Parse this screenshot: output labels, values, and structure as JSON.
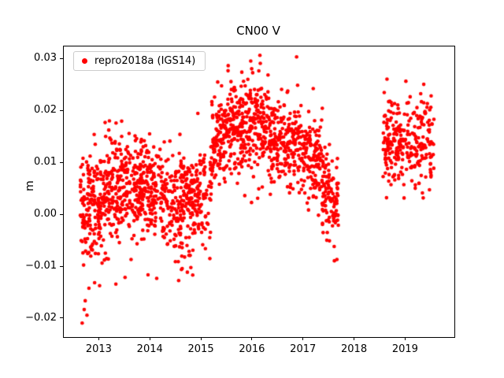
{
  "figure": {
    "title": "CN00 V",
    "ylabel": "m"
  },
  "legend": {
    "label": "repro2018a (IGS14)",
    "marker_color": "#ff0000"
  },
  "chart_data": {
    "type": "scatter",
    "title": "CN00 V",
    "xlabel": "",
    "ylabel": "m",
    "grid": false,
    "legend_position": "upper left",
    "marker": "circle",
    "marker_color": "#ff0000",
    "marker_radius_px": 2.3,
    "xlim": [
      2012.3,
      2019.95
    ],
    "ylim": [
      -0.0235,
      0.0325
    ],
    "xticks": {
      "values": [
        2013,
        2014,
        2015,
        2016,
        2017,
        2018,
        2019
      ],
      "labels": [
        "2013",
        "2014",
        "2015",
        "2016",
        "2017",
        "2018",
        "2019"
      ]
    },
    "yticks": {
      "values": [
        -0.02,
        -0.01,
        0.0,
        0.01,
        0.02,
        0.03
      ],
      "labels": [
        "−0.02",
        "−0.01",
        "0.00",
        "0.01",
        "0.02",
        "0.03"
      ]
    },
    "data_gaps": [
      [
        2017.68,
        2018.55
      ]
    ],
    "series": [
      {
        "name": "repro2018a (IGS14)",
        "color": "#ff0000",
        "seed": 1337,
        "clamp_y": [
          -0.0215,
          0.0308
        ],
        "segments": [
          {
            "x0": 2012.62,
            "x1": 2013.05,
            "n": 170,
            "y0": 0.0,
            "y1": 0.002,
            "std": 0.0063
          },
          {
            "x0": 2013.05,
            "x1": 2013.75,
            "n": 250,
            "y0": 0.004,
            "y1": 0.006,
            "std": 0.005
          },
          {
            "x0": 2013.75,
            "x1": 2014.45,
            "n": 240,
            "y0": 0.005,
            "y1": 0.004,
            "std": 0.0048
          },
          {
            "x0": 2014.45,
            "x1": 2015.18,
            "n": 250,
            "y0": 0.002,
            "y1": 0.004,
            "std": 0.005
          },
          {
            "x0": 2015.18,
            "x1": 2015.5,
            "n": 120,
            "y0": 0.013,
            "y1": 0.016,
            "std": 0.004
          },
          {
            "x0": 2015.5,
            "x1": 2016.3,
            "n": 290,
            "y0": 0.017,
            "y1": 0.017,
            "std": 0.0045
          },
          {
            "x0": 2016.3,
            "x1": 2016.8,
            "n": 170,
            "y0": 0.014,
            "y1": 0.013,
            "std": 0.0048
          },
          {
            "x0": 2016.8,
            "x1": 2017.35,
            "n": 180,
            "y0": 0.013,
            "y1": 0.011,
            "std": 0.0042
          },
          {
            "x0": 2017.35,
            "x1": 2017.68,
            "n": 110,
            "y0": 0.007,
            "y1": 0.001,
            "std": 0.0042
          },
          {
            "x0": 2018.55,
            "x1": 2019.55,
            "n": 280,
            "y0": 0.014,
            "y1": 0.014,
            "std": 0.0042
          }
        ],
        "outliers": [
          {
            "x": 2012.66,
            "y": -0.0208
          },
          {
            "x": 2012.7,
            "y": -0.0182
          },
          {
            "x": 2012.72,
            "y": -0.0165
          },
          {
            "x": 2013.32,
            "y": -0.0133
          },
          {
            "x": 2013.5,
            "y": -0.012
          },
          {
            "x": 2013.95,
            "y": -0.0115
          },
          {
            "x": 2014.12,
            "y": -0.0122
          },
          {
            "x": 2014.55,
            "y": -0.0126
          },
          {
            "x": 2014.72,
            "y": -0.011
          },
          {
            "x": 2015.52,
            "y": 0.0288
          },
          {
            "x": 2015.98,
            "y": 0.0282
          },
          {
            "x": 2016.12,
            "y": 0.0278
          },
          {
            "x": 2016.3,
            "y": 0.027
          },
          {
            "x": 2016.86,
            "y": 0.0305
          },
          {
            "x": 2017.6,
            "y": -0.0088
          },
          {
            "x": 2018.63,
            "y": 0.0262
          },
          {
            "x": 2019.0,
            "y": 0.0258
          },
          {
            "x": 2019.35,
            "y": 0.0252
          }
        ]
      }
    ]
  }
}
